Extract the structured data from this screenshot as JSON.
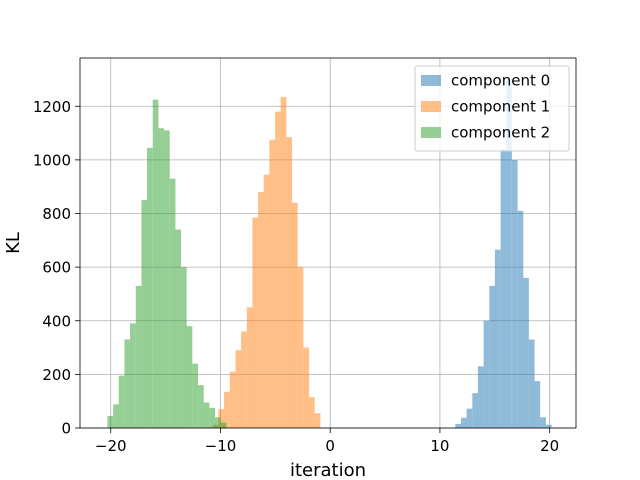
{
  "chart_data": {
    "type": "histogram",
    "xlabel": "iteration",
    "ylabel": "KL",
    "xlim": [
      -22.8,
      22.4
    ],
    "ylim": [
      0,
      1380
    ],
    "xticks": [
      -20,
      -10,
      0,
      10,
      20
    ],
    "yticks": [
      0,
      200,
      400,
      600,
      800,
      1000,
      1200
    ],
    "grid": true,
    "legend_position": "top-right",
    "bar_opacity": 0.5,
    "series": [
      {
        "name": "component 0",
        "color": "#1f77b4",
        "bin_width": 0.516,
        "bins": [
          {
            "x": 11.4,
            "y": 15
          },
          {
            "x": 11.92,
            "y": 38
          },
          {
            "x": 12.43,
            "y": 72
          },
          {
            "x": 12.95,
            "y": 130
          },
          {
            "x": 13.46,
            "y": 230
          },
          {
            "x": 13.98,
            "y": 400
          },
          {
            "x": 14.5,
            "y": 530
          },
          {
            "x": 15.01,
            "y": 665
          },
          {
            "x": 15.53,
            "y": 1040
          },
          {
            "x": 16.04,
            "y": 1300
          },
          {
            "x": 16.56,
            "y": 1000
          },
          {
            "x": 17.08,
            "y": 810
          },
          {
            "x": 17.59,
            "y": 560
          },
          {
            "x": 18.11,
            "y": 330
          },
          {
            "x": 18.62,
            "y": 175
          },
          {
            "x": 19.14,
            "y": 40
          },
          {
            "x": 19.66,
            "y": 12
          }
        ]
      },
      {
        "name": "component 1",
        "color": "#ff7f0e",
        "bin_width": 0.516,
        "bins": [
          {
            "x": -10.7,
            "y": 12
          },
          {
            "x": -10.18,
            "y": 70
          },
          {
            "x": -9.67,
            "y": 135
          },
          {
            "x": -9.15,
            "y": 210
          },
          {
            "x": -8.63,
            "y": 290
          },
          {
            "x": -8.12,
            "y": 360
          },
          {
            "x": -7.6,
            "y": 450
          },
          {
            "x": -7.09,
            "y": 785
          },
          {
            "x": -6.57,
            "y": 880
          },
          {
            "x": -6.06,
            "y": 945
          },
          {
            "x": -5.54,
            "y": 1075
          },
          {
            "x": -5.02,
            "y": 1180
          },
          {
            "x": -4.51,
            "y": 1235
          },
          {
            "x": -3.99,
            "y": 1085
          },
          {
            "x": -3.48,
            "y": 840
          },
          {
            "x": -2.96,
            "y": 600
          },
          {
            "x": -2.44,
            "y": 300
          },
          {
            "x": -1.93,
            "y": 115
          },
          {
            "x": -1.41,
            "y": 55
          }
        ]
      },
      {
        "name": "component 2",
        "color": "#2ca02c",
        "bin_width": 0.516,
        "bins": [
          {
            "x": -20.3,
            "y": 45
          },
          {
            "x": -19.78,
            "y": 88
          },
          {
            "x": -19.27,
            "y": 195
          },
          {
            "x": -18.75,
            "y": 330
          },
          {
            "x": -18.24,
            "y": 390
          },
          {
            "x": -17.72,
            "y": 530
          },
          {
            "x": -17.2,
            "y": 850
          },
          {
            "x": -16.69,
            "y": 1045
          },
          {
            "x": -16.17,
            "y": 1225
          },
          {
            "x": -15.66,
            "y": 1118
          },
          {
            "x": -15.14,
            "y": 1110
          },
          {
            "x": -14.62,
            "y": 930
          },
          {
            "x": -14.11,
            "y": 740
          },
          {
            "x": -13.59,
            "y": 600
          },
          {
            "x": -13.08,
            "y": 380
          },
          {
            "x": -12.56,
            "y": 240
          },
          {
            "x": -12.04,
            "y": 160
          },
          {
            "x": -11.53,
            "y": 95
          },
          {
            "x": -11.01,
            "y": 75
          },
          {
            "x": -10.5,
            "y": 40
          },
          {
            "x": -9.98,
            "y": 20
          }
        ]
      }
    ]
  }
}
